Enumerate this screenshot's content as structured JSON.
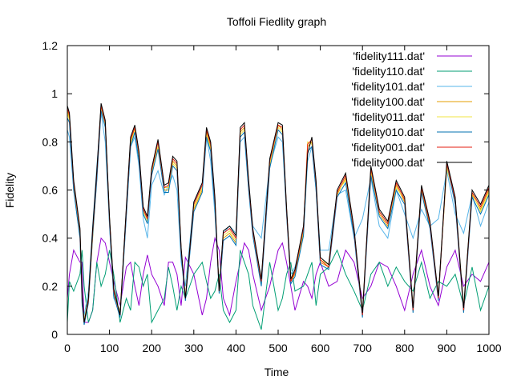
{
  "chart_data": {
    "type": "line",
    "title": "Toffoli Fiedlity graph",
    "xlabel": "Time",
    "ylabel": "Fidelity",
    "xlim": [
      0,
      1000
    ],
    "ylim": [
      0,
      1.2
    ],
    "xticks": [
      0,
      100,
      200,
      300,
      400,
      500,
      600,
      700,
      800,
      900,
      1000
    ],
    "yticks": [
      0,
      0.2,
      0.4,
      0.6,
      0.8,
      1,
      1.2
    ],
    "ytick_labels": [
      "0",
      "0.2",
      "0.4",
      "0.6",
      "0.8",
      "1",
      "1.2"
    ],
    "grid": false,
    "legend_position": "top-right",
    "x": [
      0,
      5,
      15,
      30,
      35,
      40,
      50,
      60,
      70,
      80,
      90,
      100,
      110,
      125,
      140,
      150,
      160,
      170,
      180,
      190,
      200,
      215,
      230,
      240,
      250,
      260,
      270,
      280,
      300,
      320,
      330,
      340,
      350,
      360,
      370,
      385,
      400,
      410,
      420,
      430,
      440,
      460,
      480,
      500,
      510,
      520,
      530,
      540,
      560,
      570,
      580,
      590,
      600,
      620,
      640,
      660,
      680,
      700,
      720,
      740,
      760,
      780,
      800,
      820,
      840,
      860,
      880,
      900,
      920,
      940,
      960,
      980,
      1000
    ],
    "series": [
      {
        "name": "'fidelity111.dat'",
        "color": "#9400d3",
        "values": [
          0.15,
          0.25,
          0.35,
          0.3,
          0.3,
          0.05,
          0.05,
          0.1,
          0.3,
          0.4,
          0.38,
          0.3,
          0.22,
          0.12,
          0.28,
          0.3,
          0.2,
          0.12,
          0.25,
          0.33,
          0.25,
          0.2,
          0.12,
          0.3,
          0.3,
          0.25,
          0.12,
          0.32,
          0.25,
          0.08,
          0.15,
          0.3,
          0.4,
          0.35,
          0.15,
          0.08,
          0.22,
          0.3,
          0.38,
          0.35,
          0.25,
          0.1,
          0.2,
          0.35,
          0.38,
          0.3,
          0.2,
          0.1,
          0.22,
          0.2,
          0.15,
          0.25,
          0.3,
          0.2,
          0.22,
          0.35,
          0.3,
          0.15,
          0.2,
          0.3,
          0.28,
          0.2,
          0.1,
          0.25,
          0.35,
          0.2,
          0.12,
          0.28,
          0.35,
          0.2,
          0.25,
          0.22,
          0.3
        ]
      },
      {
        "name": "'fidelity110.dat'",
        "color": "#009e73",
        "values": [
          0.05,
          0.22,
          0.18,
          0.25,
          0.35,
          0.2,
          0.05,
          0.1,
          0.3,
          0.2,
          0.25,
          0.35,
          0.25,
          0.05,
          0.15,
          0.1,
          0.3,
          0.28,
          0.2,
          0.25,
          0.05,
          0.1,
          0.15,
          0.28,
          0.2,
          0.1,
          0.2,
          0.15,
          0.25,
          0.3,
          0.22,
          0.15,
          0.18,
          0.25,
          0.1,
          0.05,
          0.1,
          0.35,
          0.3,
          0.25,
          0.12,
          0.02,
          0.3,
          0.1,
          0.15,
          0.25,
          0.3,
          0.18,
          0.2,
          0.25,
          0.3,
          0.12,
          0.25,
          0.28,
          0.35,
          0.25,
          0.18,
          0.1,
          0.25,
          0.3,
          0.2,
          0.28,
          0.22,
          0.18,
          0.3,
          0.15,
          0.22,
          0.2,
          0.25,
          0.12,
          0.28,
          0.1,
          0.2
        ]
      },
      {
        "name": "'fidelity101.dat'",
        "color": "#56b4e9",
        "values": [
          0.85,
          0.82,
          0.6,
          0.4,
          0.12,
          0.08,
          0.18,
          0.45,
          0.7,
          0.92,
          0.8,
          0.45,
          0.15,
          0.1,
          0.5,
          0.78,
          0.82,
          0.7,
          0.48,
          0.4,
          0.62,
          0.68,
          0.58,
          0.62,
          0.66,
          0.6,
          0.3,
          0.2,
          0.55,
          0.62,
          0.82,
          0.72,
          0.5,
          0.2,
          0.42,
          0.45,
          0.42,
          0.8,
          0.82,
          0.6,
          0.45,
          0.4,
          0.7,
          0.82,
          0.8,
          0.5,
          0.25,
          0.28,
          0.42,
          0.72,
          0.78,
          0.6,
          0.35,
          0.35,
          0.58,
          0.6,
          0.4,
          0.48,
          0.65,
          0.45,
          0.4,
          0.6,
          0.5,
          0.4,
          0.52,
          0.45,
          0.48,
          0.68,
          0.5,
          0.42,
          0.58,
          0.45,
          0.55
        ]
      },
      {
        "name": "'fidelity100.dat'",
        "color": "#e69f00",
        "values": [
          0.93,
          0.9,
          0.62,
          0.42,
          0.15,
          0.05,
          0.14,
          0.4,
          0.65,
          0.95,
          0.88,
          0.48,
          0.18,
          0.08,
          0.5,
          0.8,
          0.86,
          0.74,
          0.52,
          0.48,
          0.68,
          0.8,
          0.6,
          0.6,
          0.72,
          0.7,
          0.35,
          0.15,
          0.52,
          0.6,
          0.84,
          0.78,
          0.55,
          0.18,
          0.4,
          0.42,
          0.38,
          0.84,
          0.86,
          0.62,
          0.42,
          0.22,
          0.7,
          0.87,
          0.85,
          0.52,
          0.22,
          0.25,
          0.42,
          0.78,
          0.8,
          0.62,
          0.3,
          0.28,
          0.58,
          0.65,
          0.42,
          0.08,
          0.68,
          0.5,
          0.45,
          0.62,
          0.55,
          0.1,
          0.6,
          0.45,
          0.15,
          0.7,
          0.55,
          0.1,
          0.58,
          0.52,
          0.6
        ]
      },
      {
        "name": "'fidelity011.dat'",
        "color": "#f0e442",
        "values": [
          0.92,
          0.89,
          0.61,
          0.41,
          0.14,
          0.06,
          0.15,
          0.42,
          0.66,
          0.94,
          0.87,
          0.47,
          0.17,
          0.09,
          0.51,
          0.79,
          0.85,
          0.73,
          0.51,
          0.47,
          0.67,
          0.78,
          0.61,
          0.61,
          0.71,
          0.69,
          0.34,
          0.16,
          0.53,
          0.61,
          0.83,
          0.77,
          0.54,
          0.19,
          0.41,
          0.43,
          0.39,
          0.83,
          0.85,
          0.61,
          0.43,
          0.21,
          0.71,
          0.86,
          0.84,
          0.51,
          0.23,
          0.26,
          0.43,
          0.8,
          0.79,
          0.61,
          0.31,
          0.29,
          0.59,
          0.64,
          0.43,
          0.09,
          0.67,
          0.51,
          0.46,
          0.61,
          0.56,
          0.11,
          0.61,
          0.46,
          0.16,
          0.69,
          0.56,
          0.11,
          0.59,
          0.51,
          0.59
        ]
      },
      {
        "name": "'fidelity010.dat'",
        "color": "#0072b2",
        "values": [
          0.9,
          0.88,
          0.6,
          0.4,
          0.13,
          0.04,
          0.13,
          0.41,
          0.64,
          0.93,
          0.86,
          0.46,
          0.16,
          0.07,
          0.49,
          0.78,
          0.84,
          0.72,
          0.5,
          0.46,
          0.66,
          0.77,
          0.59,
          0.59,
          0.7,
          0.68,
          0.33,
          0.14,
          0.51,
          0.59,
          0.82,
          0.76,
          0.53,
          0.17,
          0.39,
          0.41,
          0.37,
          0.82,
          0.84,
          0.6,
          0.41,
          0.2,
          0.69,
          0.85,
          0.83,
          0.5,
          0.21,
          0.24,
          0.41,
          0.76,
          0.78,
          0.6,
          0.29,
          0.27,
          0.57,
          0.63,
          0.41,
          0.07,
          0.66,
          0.49,
          0.44,
          0.6,
          0.54,
          0.09,
          0.59,
          0.44,
          0.14,
          0.71,
          0.54,
          0.09,
          0.57,
          0.5,
          0.58
        ]
      },
      {
        "name": "'fidelity001.dat'",
        "color": "#e51e10",
        "values": [
          0.94,
          0.91,
          0.63,
          0.43,
          0.16,
          0.05,
          0.14,
          0.43,
          0.67,
          0.95,
          0.88,
          0.48,
          0.18,
          0.08,
          0.52,
          0.81,
          0.86,
          0.75,
          0.52,
          0.48,
          0.68,
          0.8,
          0.61,
          0.62,
          0.73,
          0.71,
          0.35,
          0.15,
          0.54,
          0.62,
          0.85,
          0.79,
          0.56,
          0.18,
          0.42,
          0.44,
          0.4,
          0.85,
          0.87,
          0.63,
          0.43,
          0.22,
          0.72,
          0.87,
          0.86,
          0.52,
          0.22,
          0.26,
          0.44,
          0.79,
          0.81,
          0.63,
          0.31,
          0.28,
          0.59,
          0.66,
          0.43,
          0.08,
          0.69,
          0.51,
          0.46,
          0.63,
          0.56,
          0.1,
          0.61,
          0.46,
          0.15,
          0.71,
          0.56,
          0.1,
          0.59,
          0.53,
          0.61
        ]
      },
      {
        "name": "'fidelity000.dat'",
        "color": "#000000",
        "values": [
          0.95,
          0.92,
          0.64,
          0.44,
          0.17,
          0.05,
          0.15,
          0.44,
          0.68,
          0.96,
          0.89,
          0.49,
          0.19,
          0.08,
          0.53,
          0.82,
          0.87,
          0.76,
          0.53,
          0.49,
          0.69,
          0.81,
          0.62,
          0.63,
          0.74,
          0.72,
          0.36,
          0.15,
          0.55,
          0.63,
          0.86,
          0.8,
          0.57,
          0.18,
          0.43,
          0.45,
          0.41,
          0.86,
          0.88,
          0.64,
          0.44,
          0.23,
          0.73,
          0.88,
          0.87,
          0.53,
          0.23,
          0.27,
          0.45,
          0.75,
          0.82,
          0.64,
          0.32,
          0.29,
          0.6,
          0.67,
          0.44,
          0.09,
          0.7,
          0.52,
          0.47,
          0.64,
          0.57,
          0.11,
          0.62,
          0.47,
          0.16,
          0.72,
          0.57,
          0.11,
          0.6,
          0.54,
          0.62
        ]
      }
    ]
  }
}
